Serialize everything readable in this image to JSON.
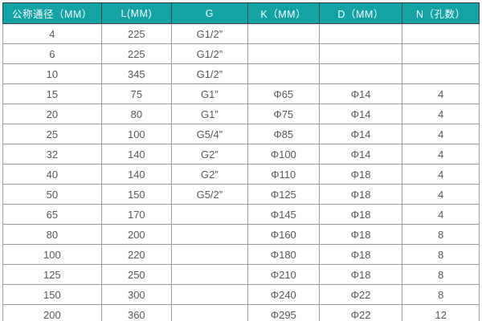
{
  "colors": {
    "header_bg": "#13a3a5",
    "header_text": "#ffffff",
    "cell_text": "#585858",
    "grid_border": "#9b9b9b",
    "header_border": "#3c4040"
  },
  "chart_data": {
    "type": "table",
    "title": "",
    "headers": [
      "公称通径（MM）",
      "L(MM)",
      "G",
      "K（MM）",
      "D（MM）",
      "N（孔数）"
    ],
    "rows": [
      [
        "4",
        "225",
        "G1/2”",
        "",
        "",
        ""
      ],
      [
        "6",
        "225",
        "G1/2”",
        "",
        "",
        ""
      ],
      [
        "10",
        "345",
        "G1/2”",
        "",
        "",
        ""
      ],
      [
        "15",
        "75",
        "G1”",
        "Φ65",
        "Φ14",
        "4"
      ],
      [
        "20",
        "80",
        "G1”",
        "Φ75",
        "Φ14",
        "4"
      ],
      [
        "25",
        "100",
        "G5/4”",
        "Φ85",
        "Φ14",
        "4"
      ],
      [
        "32",
        "140",
        "G2”",
        "Φ100",
        "Φ14",
        "4"
      ],
      [
        "40",
        "140",
        "G2”",
        "Φ110",
        "Φ18",
        "4"
      ],
      [
        "50",
        "150",
        "G5/2”",
        "Φ125",
        "Φ18",
        "4"
      ],
      [
        "65",
        "170",
        "",
        "Φ145",
        "Φ18",
        "4"
      ],
      [
        "80",
        "200",
        "",
        "Φ160",
        "Φ18",
        "8"
      ],
      [
        "100",
        "220",
        "",
        "Φ180",
        "Φ18",
        "8"
      ],
      [
        "125",
        "250",
        "",
        "Φ210",
        "Φ18",
        "8"
      ],
      [
        "150",
        "300",
        "",
        "Φ240",
        "Φ22",
        "8"
      ],
      [
        "200",
        "360",
        "",
        "Φ295",
        "Φ22",
        "12"
      ]
    ]
  }
}
